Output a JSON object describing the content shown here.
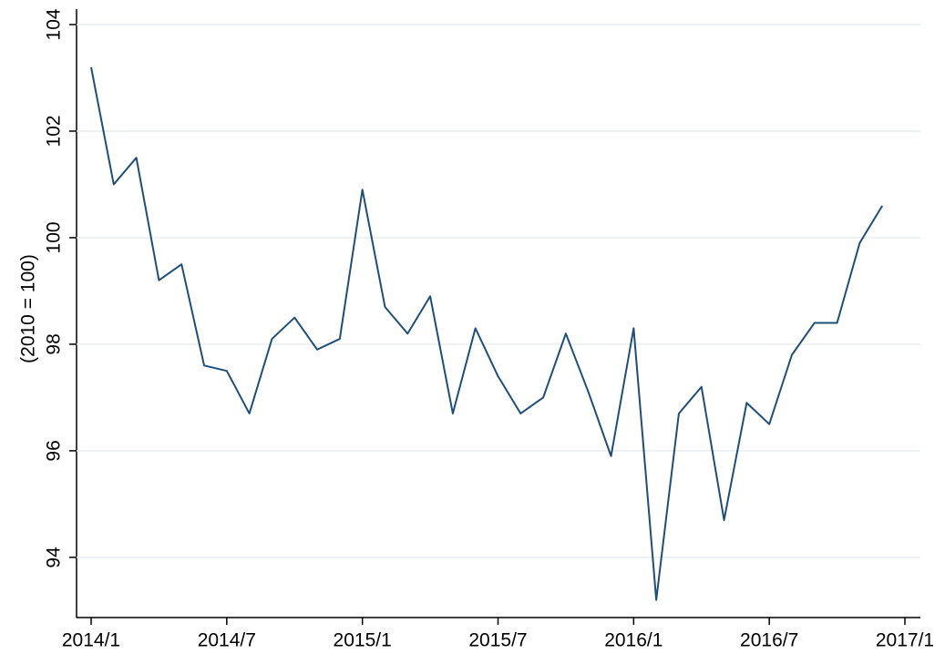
{
  "chart_data": {
    "type": "line",
    "y_label": "(2010 = 100)",
    "x": [
      "2014/1",
      "2014/2",
      "2014/3",
      "2014/4",
      "2014/5",
      "2014/6",
      "2014/7",
      "2014/8",
      "2014/9",
      "2014/10",
      "2014/11",
      "2014/12",
      "2015/1",
      "2015/2",
      "2015/3",
      "2015/4",
      "2015/5",
      "2015/6",
      "2015/7",
      "2015/8",
      "2015/9",
      "2015/10",
      "2015/11",
      "2015/12",
      "2016/1",
      "2016/2",
      "2016/3",
      "2016/4",
      "2016/5",
      "2016/6",
      "2016/7",
      "2016/8",
      "2016/9",
      "2016/10",
      "2016/11",
      "2016/12"
    ],
    "series": [
      {
        "color": "#1f4e79",
        "values": [
          103.2,
          101.0,
          101.5,
          99.2,
          99.5,
          97.6,
          97.5,
          96.7,
          98.1,
          98.5,
          97.9,
          98.1,
          100.9,
          98.7,
          98.2,
          98.9,
          96.7,
          98.3,
          97.4,
          96.7,
          97.0,
          98.2,
          97.1,
          95.9,
          98.3,
          93.2,
          96.7,
          97.2,
          94.7,
          96.9,
          96.5,
          97.8,
          98.4,
          98.4,
          99.9,
          100.6
        ]
      }
    ],
    "xlim": [
      "2014/1",
      "2017/1"
    ],
    "xticks": [
      "2014/1",
      "2014/7",
      "2015/1",
      "2015/7",
      "2016/1",
      "2016/7",
      "2017/1"
    ],
    "ylim": [
      92.87,
      104.29
    ],
    "yticks": [
      94,
      96,
      98,
      100,
      102,
      104
    ],
    "grid": true
  }
}
